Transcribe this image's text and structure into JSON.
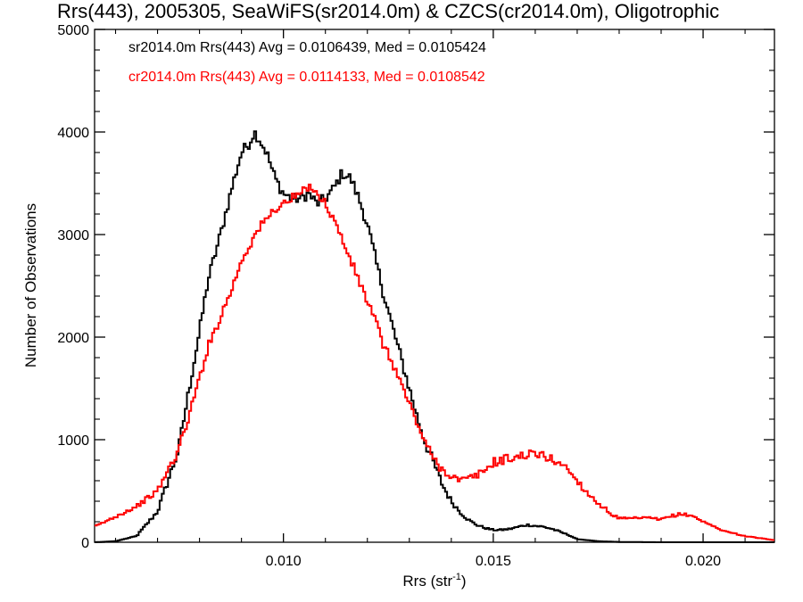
{
  "chart_data": {
    "type": "line",
    "title": "Rrs(443), 2005305, SeaWiFS(sr2014.0m) & CZCS(cr2014.0m), Oligotrophic",
    "xlabel_main": "Rrs (str",
    "xlabel_sup": "-1",
    "xlabel_close": ")",
    "ylabel": "Number of Observations",
    "xlim": [
      0.0055,
      0.0217
    ],
    "ylim": [
      0,
      5000
    ],
    "grid": false,
    "xticks": [
      {
        "value": 0.01,
        "label": "0.010"
      },
      {
        "value": 0.015,
        "label": "0.015"
      },
      {
        "value": 0.02,
        "label": "0.020"
      }
    ],
    "yticks": [
      {
        "value": 0,
        "label": "0"
      },
      {
        "value": 1000,
        "label": "1000"
      },
      {
        "value": 2000,
        "label": "2000"
      },
      {
        "value": 3000,
        "label": "3000"
      },
      {
        "value": 4000,
        "label": "4000"
      },
      {
        "value": 5000,
        "label": "5000"
      }
    ],
    "legend_placement": "top-left",
    "series": [
      {
        "name": "sr2014.0m Rrs(443) Avg = 0.0106439, Med = 0.0105424",
        "color": "#000000",
        "x": [
          0.0055,
          0.006,
          0.0065,
          0.007,
          0.0075,
          0.0078,
          0.008,
          0.0082,
          0.0085,
          0.0088,
          0.009,
          0.0092,
          0.0093,
          0.0094,
          0.0096,
          0.0098,
          0.01,
          0.0102,
          0.0104,
          0.0106,
          0.0108,
          0.011,
          0.0112,
          0.0114,
          0.0116,
          0.0118,
          0.012,
          0.0122,
          0.0124,
          0.0126,
          0.0128,
          0.013,
          0.0132,
          0.0134,
          0.0136,
          0.0138,
          0.014,
          0.0142,
          0.0144,
          0.0146,
          0.0148,
          0.015,
          0.0152,
          0.0154,
          0.0156,
          0.0158,
          0.016,
          0.0162,
          0.0164,
          0.0166,
          0.0168,
          0.017,
          0.0175,
          0.018,
          0.019,
          0.02,
          0.0217
        ],
        "y": [
          0,
          10,
          60,
          300,
          900,
          1600,
          2050,
          2550,
          3000,
          3500,
          3800,
          3900,
          4000,
          3950,
          3800,
          3550,
          3400,
          3350,
          3350,
          3400,
          3300,
          3350,
          3450,
          3600,
          3550,
          3350,
          3100,
          2750,
          2400,
          2100,
          1800,
          1500,
          1200,
          950,
          750,
          550,
          400,
          300,
          220,
          170,
          140,
          120,
          120,
          130,
          150,
          170,
          160,
          150,
          130,
          100,
          70,
          30,
          10,
          3,
          0,
          0,
          0
        ],
        "jitter": 55
      },
      {
        "name": "cr2014.0m Rrs(443) Avg = 0.0114133, Med = 0.0108542",
        "color": "#ff0000",
        "x": [
          0.0055,
          0.006,
          0.0065,
          0.007,
          0.0075,
          0.0078,
          0.008,
          0.0082,
          0.0085,
          0.0088,
          0.009,
          0.0092,
          0.0094,
          0.0096,
          0.0098,
          0.01,
          0.0102,
          0.0104,
          0.0106,
          0.0107,
          0.0108,
          0.011,
          0.0112,
          0.0114,
          0.0116,
          0.0118,
          0.012,
          0.0122,
          0.0124,
          0.0126,
          0.0128,
          0.013,
          0.0132,
          0.0134,
          0.0136,
          0.0138,
          0.014,
          0.0142,
          0.0144,
          0.0146,
          0.0148,
          0.015,
          0.0152,
          0.0154,
          0.0156,
          0.0158,
          0.016,
          0.0162,
          0.0164,
          0.0166,
          0.0168,
          0.017,
          0.0172,
          0.0175,
          0.0178,
          0.018,
          0.0183,
          0.0186,
          0.0188,
          0.019,
          0.0192,
          0.0194,
          0.0196,
          0.0198,
          0.02,
          0.0205,
          0.021,
          0.0217
        ],
        "y": [
          150,
          250,
          350,
          500,
          900,
          1300,
          1600,
          1900,
          2200,
          2500,
          2750,
          2900,
          3050,
          3150,
          3250,
          3300,
          3350,
          3400,
          3450,
          3480,
          3400,
          3300,
          3150,
          2950,
          2750,
          2550,
          2350,
          2150,
          1900,
          1750,
          1550,
          1350,
          1150,
          950,
          800,
          700,
          650,
          600,
          620,
          650,
          700,
          780,
          800,
          820,
          830,
          860,
          850,
          850,
          800,
          780,
          700,
          600,
          500,
          380,
          280,
          230,
          230,
          240,
          230,
          220,
          250,
          270,
          270,
          250,
          200,
          110,
          60,
          20
        ],
        "jitter": 45
      }
    ]
  }
}
